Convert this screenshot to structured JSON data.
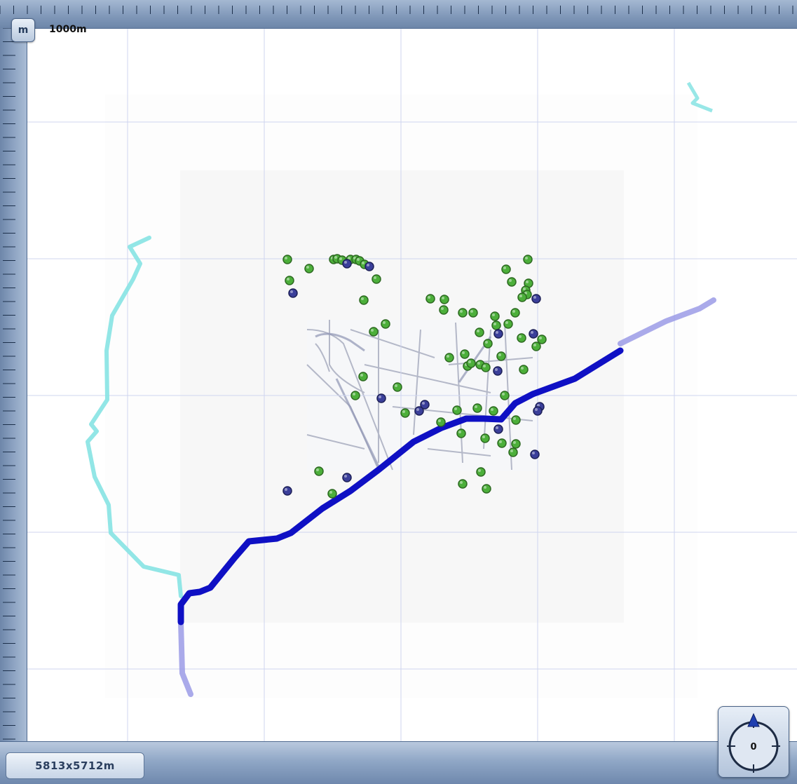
{
  "toolbar": {
    "unit_button_label": "m",
    "scale_label": "1000m"
  },
  "status": {
    "map_size": "5813x5712m"
  },
  "compass": {
    "heading": "0"
  },
  "colors": {
    "route_primary": "#1010c8",
    "route_secondary": "#9a9ae2",
    "route_cyan": "#7fe6e6",
    "poi_green": "#4caf3a",
    "poi_blue": "#3b3f9a",
    "grid": "#c9d0ef"
  },
  "icons": {
    "unit_toggle": "unit-toggle-button",
    "compass": "compass-icon",
    "north_arrow": "north-arrow-icon"
  }
}
